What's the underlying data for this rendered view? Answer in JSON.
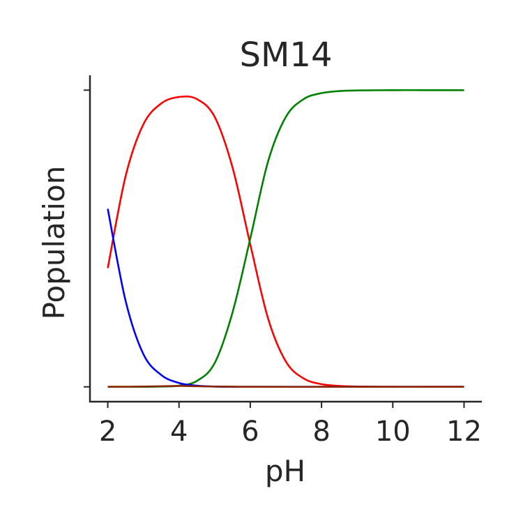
{
  "chart_data": {
    "type": "line",
    "title": "SM14",
    "xlabel": "pH",
    "ylabel": "Population",
    "xlim": [
      1.5,
      12.5
    ],
    "ylim": [
      -0.05,
      1.05
    ],
    "xticks": [
      2,
      4,
      6,
      8,
      10,
      12
    ],
    "xtick_labels": [
      "2",
      "4",
      "6",
      "8",
      "10",
      "12"
    ],
    "yticks": [
      0,
      1
    ],
    "grid": false,
    "legend": "none",
    "series": [
      {
        "color": "#ff0000",
        "x": [
          2.0,
          2.5,
          3.0,
          3.5,
          4.0,
          4.5,
          5.0,
          5.5,
          6.0,
          6.5,
          7.0,
          7.5,
          8.0,
          8.5,
          9.0,
          10.0,
          11.0,
          12.0
        ],
        "y": [
          0.4,
          0.71,
          0.885,
          0.955,
          0.977,
          0.97,
          0.91,
          0.74,
          0.48,
          0.23,
          0.085,
          0.028,
          0.009,
          0.003,
          0.001,
          0.0,
          0.0,
          0.0
        ]
      },
      {
        "color": "#008000",
        "x": [
          2.0,
          3.0,
          3.5,
          4.0,
          4.5,
          5.0,
          5.5,
          6.0,
          6.5,
          7.0,
          7.5,
          8.0,
          8.5,
          9.0,
          10.0,
          11.0,
          12.0
        ],
        "y": [
          0.0,
          0.0,
          0.001,
          0.004,
          0.02,
          0.08,
          0.25,
          0.5,
          0.76,
          0.91,
          0.97,
          0.99,
          0.997,
          0.999,
          1.0,
          1.0,
          1.0
        ]
      },
      {
        "color": "#0000ff",
        "x": [
          2.0,
          2.5,
          3.0,
          3.5,
          4.0,
          4.5,
          5.0,
          5.5,
          6.0,
          7.0,
          8.0,
          9.0,
          10.0,
          11.0,
          12.0
        ],
        "y": [
          0.6,
          0.29,
          0.11,
          0.04,
          0.013,
          0.004,
          0.001,
          0.0,
          0.0,
          0.0,
          0.0,
          0.0,
          0.0,
          0.0,
          0.0
        ]
      },
      {
        "color": "#8b2500",
        "x": [
          2.0,
          3.0,
          4.0,
          4.5,
          5.0,
          6.0,
          8.0,
          10.0,
          12.0
        ],
        "y": [
          0.0,
          0.001,
          0.003,
          0.002,
          0.001,
          0.0,
          0.0,
          0.0,
          0.0
        ]
      }
    ]
  }
}
